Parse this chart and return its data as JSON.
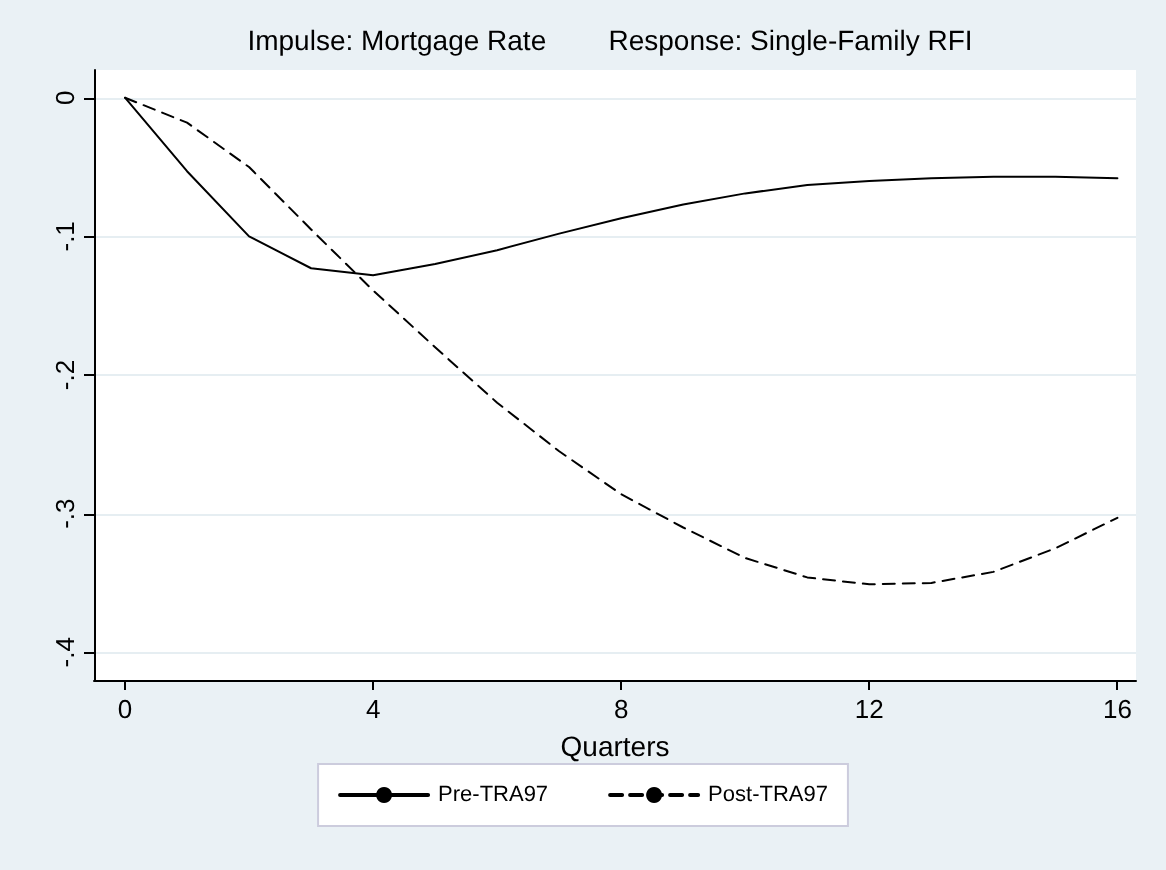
{
  "chart_data": {
    "type": "line",
    "title": "Impulse: Mortgage Rate        Response: Single-Family RFI",
    "xlabel": "Quarters",
    "x": [
      0,
      1,
      2,
      3,
      4,
      5,
      6,
      7,
      8,
      9,
      10,
      11,
      12,
      13,
      14,
      15,
      16
    ],
    "series": [
      {
        "name": "Pre-TRA97",
        "color": "#000000",
        "line_style": "solid",
        "values": [
          0,
          -0.053,
          -0.1,
          -0.123,
          -0.128,
          -0.12,
          -0.11,
          -0.098,
          -0.087,
          -0.077,
          -0.069,
          -0.063,
          -0.06,
          -0.058,
          -0.057,
          -0.057,
          -0.058
        ]
      },
      {
        "name": "Post-TRA97",
        "color": "#000000",
        "line_style": "dashed",
        "values": [
          0,
          -0.018,
          -0.05,
          -0.095,
          -0.139,
          -0.18,
          -0.22,
          -0.255,
          -0.286,
          -0.31,
          -0.332,
          -0.346,
          -0.351,
          -0.35,
          -0.342,
          -0.325,
          -0.303
        ]
      }
    ],
    "xlim": [
      -0.5,
      16.3
    ],
    "xticks": [
      0,
      4,
      8,
      12,
      16
    ],
    "ylim": [
      -0.42,
      0.02
    ],
    "yticks": [
      0,
      {
        "value": -0.1,
        "label": "-.1"
      },
      {
        "value": -0.2,
        "label": "-.2"
      },
      {
        "value": -0.3,
        "label": "-.3"
      },
      {
        "value": -0.4,
        "label": "-.4"
      }
    ],
    "grid": "y",
    "legend": "bottom",
    "marker": "none"
  }
}
